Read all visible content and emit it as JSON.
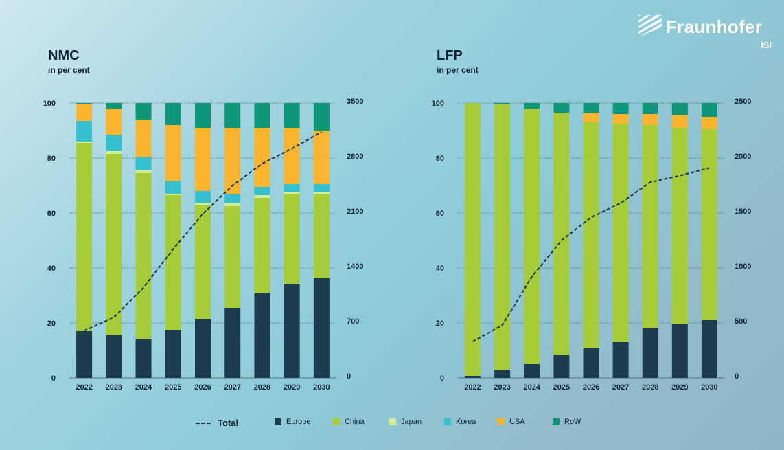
{
  "logo": {
    "brand": "Fraunhofer",
    "sub": "ISI"
  },
  "colors": {
    "Europe": "#1d3c4f",
    "China": "#a7cc3a",
    "Japan": "#d4ec9c",
    "Korea": "#35c0cf",
    "USA": "#fbb42f",
    "RoW": "#0f9578",
    "Total": "#243b4a"
  },
  "legend": {
    "total": "Total",
    "items": [
      "Europe",
      "China",
      "Japan",
      "Korea",
      "USA",
      "RoW"
    ]
  },
  "chart_data": [
    {
      "type": "bar",
      "stacked": true,
      "title": "NMC",
      "ylabel": "in per cent",
      "categories": [
        "2022",
        "2023",
        "2024",
        "2025",
        "2026",
        "2027",
        "2028",
        "2029",
        "2030"
      ],
      "ylim": [
        0,
        100
      ],
      "yticks": [
        "0",
        "20",
        "40",
        "60",
        "80",
        "100"
      ],
      "y2lim": [
        0,
        3500
      ],
      "y2ticks": [
        "0",
        "700",
        "1400",
        "2100",
        "2800",
        "3500"
      ],
      "grid": true,
      "series": [
        {
          "name": "Europe",
          "values": [
            17,
            15.5,
            14,
            17.5,
            21.5,
            25.5,
            31,
            34,
            36.5
          ]
        },
        {
          "name": "China",
          "values": [
            68.5,
            66,
            60.5,
            49,
            41.5,
            37,
            34.5,
            33,
            30.5
          ]
        },
        {
          "name": "Japan",
          "values": [
            0.5,
            1,
            1,
            0.5,
            0.5,
            1,
            1,
            0.5,
            0.5
          ]
        },
        {
          "name": "Korea",
          "values": [
            7.5,
            6,
            5,
            4.5,
            4.5,
            3.5,
            3,
            3,
            3
          ]
        },
        {
          "name": "USA",
          "values": [
            6,
            9.5,
            13.5,
            20.5,
            23,
            24,
            21.5,
            20.5,
            19.5
          ]
        },
        {
          "name": "RoW",
          "values": [
            0.5,
            2,
            6,
            8,
            9,
            9,
            9,
            9,
            10
          ]
        }
      ],
      "line": {
        "name": "Total",
        "axis": "right",
        "values": [
          600,
          770,
          1150,
          1640,
          2090,
          2450,
          2730,
          2920,
          3130
        ]
      }
    },
    {
      "type": "bar",
      "stacked": true,
      "title": "LFP",
      "ylabel": "in per cent",
      "categories": [
        "2022",
        "2023",
        "2024",
        "2025",
        "2026",
        "2027",
        "2028",
        "2029",
        "2030"
      ],
      "ylim": [
        0,
        100
      ],
      "yticks": [
        "0",
        "20",
        "40",
        "60",
        "80",
        "100"
      ],
      "y2lim": [
        0,
        2500
      ],
      "y2ticks": [
        "0",
        "500",
        "1000",
        "1500",
        "2000",
        "2500"
      ],
      "grid": true,
      "series": [
        {
          "name": "Europe",
          "values": [
            0.5,
            3,
            5,
            8.5,
            11,
            13,
            18,
            19.5,
            21
          ]
        },
        {
          "name": "China",
          "values": [
            99.5,
            96.5,
            93,
            88,
            82,
            79.5,
            74,
            71.5,
            69.5
          ]
        },
        {
          "name": "Japan",
          "values": [
            0,
            0,
            0,
            0,
            0,
            0,
            0,
            0,
            0
          ]
        },
        {
          "name": "Korea",
          "values": [
            0,
            0,
            0,
            0,
            0,
            0,
            0,
            0,
            0
          ]
        },
        {
          "name": "USA",
          "values": [
            0,
            0,
            0,
            0,
            3.5,
            3.5,
            4,
            4.5,
            4.5
          ]
        },
        {
          "name": "RoW",
          "values": [
            0,
            0.5,
            2,
            3.5,
            3.5,
            4,
            4,
            4.5,
            5
          ]
        }
      ],
      "line": {
        "name": "Total",
        "axis": "right",
        "values": [
          330,
          480,
          920,
          1250,
          1460,
          1590,
          1780,
          1840,
          1910
        ]
      }
    }
  ]
}
